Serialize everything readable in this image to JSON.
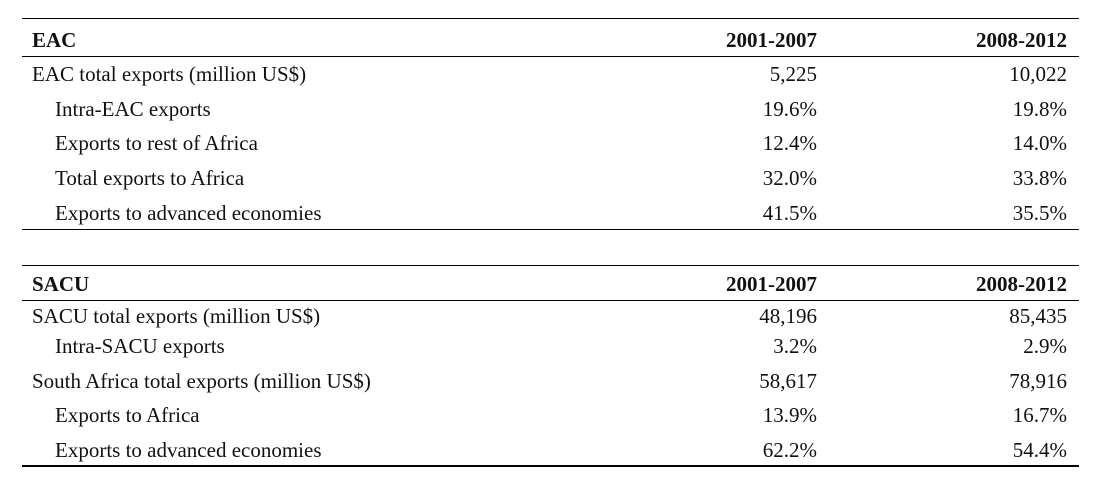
{
  "tables": [
    {
      "header": {
        "label": "EAC",
        "col1": "2001-2007",
        "col2": "2008-2012"
      },
      "rows": [
        {
          "label": "EAC total exports (million US$)",
          "col1": "5,225",
          "col2": "10,022"
        },
        {
          "label": "Intra-EAC exports",
          "col1": "19.6%",
          "col2": "19.8%"
        },
        {
          "label": "Exports to rest of Africa",
          "col1": "12.4%",
          "col2": "14.0%"
        },
        {
          "label": "Total exports to Africa",
          "col1": "32.0%",
          "col2": "33.8%"
        },
        {
          "label": "Exports to advanced economies",
          "col1": "41.5%",
          "col2": "35.5%"
        }
      ]
    },
    {
      "header": {
        "label": "SACU",
        "col1": "2001-2007",
        "col2": "2008-2012"
      },
      "rows": [
        {
          "label": "SACU total exports (million US$)",
          "col1": "48,196",
          "col2": "85,435"
        },
        {
          "label": "Intra-SACU exports",
          "col1": "3.2%",
          "col2": "2.9%"
        },
        {
          "label": "South Africa total exports (million US$)",
          "col1": "58,617",
          "col2": "78,916"
        },
        {
          "label": "Exports to Africa",
          "col1": "13.9%",
          "col2": "16.7%"
        },
        {
          "label": "Exports to advanced economies",
          "col1": "62.2%",
          "col2": "54.4%"
        }
      ]
    }
  ]
}
